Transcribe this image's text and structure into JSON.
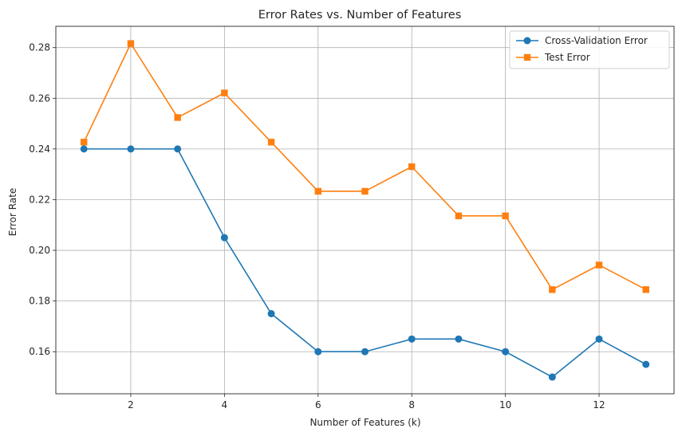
{
  "chart_data": {
    "type": "line",
    "title": "Error Rates vs. Number of Features",
    "xlabel": "Number of Features (k)",
    "ylabel": "Error Rate",
    "xlim": [
      0.4,
      13.6
    ],
    "ylim": [
      0.1434,
      0.2884
    ],
    "xticks": [
      2,
      4,
      6,
      8,
      10,
      12
    ],
    "yticks": [
      0.16,
      0.18,
      0.2,
      0.22,
      0.24,
      0.26,
      0.28
    ],
    "ytick_labels": [
      "0.16",
      "0.18",
      "0.20",
      "0.22",
      "0.24",
      "0.26",
      "0.28"
    ],
    "grid": true,
    "legend_position": "top-right",
    "x": [
      1,
      2,
      3,
      4,
      5,
      6,
      7,
      8,
      9,
      10,
      11,
      12,
      13
    ],
    "series": [
      {
        "name": "Cross-Validation Error",
        "color": "#1f77b4",
        "marker": "circle",
        "values": [
          0.24,
          0.24,
          0.24,
          0.205,
          0.175,
          0.16,
          0.16,
          0.165,
          0.165,
          0.16,
          0.15,
          0.165,
          0.155
        ]
      },
      {
        "name": "Test Error",
        "color": "#ff7f0e",
        "marker": "square",
        "values": [
          0.2427,
          0.2816,
          0.2524,
          0.2621,
          0.2427,
          0.2233,
          0.2233,
          0.233,
          0.2136,
          0.2136,
          0.1845,
          0.1942,
          0.1845
        ]
      }
    ]
  }
}
